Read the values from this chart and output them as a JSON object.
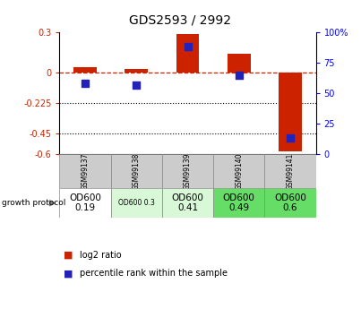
{
  "title": "GDS2593 / 2992",
  "samples": [
    "GSM99137",
    "GSM99138",
    "GSM99139",
    "GSM99140",
    "GSM99141"
  ],
  "log2_ratio": [
    0.04,
    0.03,
    0.285,
    0.14,
    -0.58
  ],
  "pct_rank_left": [
    -0.075,
    -0.09,
    0.195,
    -0.015,
    -0.48
  ],
  "ylim_left": [
    -0.6,
    0.3
  ],
  "ylim_right": [
    0,
    100
  ],
  "yticks_left": [
    0.3,
    0,
    -0.225,
    -0.45,
    -0.6
  ],
  "ytick_labels_left": [
    "0.3",
    "0",
    "-0.225",
    "-0.45",
    "-0.6"
  ],
  "yticks_right": [
    100,
    75,
    50,
    25,
    0
  ],
  "hline_dotted1": -0.225,
  "hline_dotted2": -0.45,
  "bar_color": "#cc2200",
  "dot_color": "#2222bb",
  "growth_protocol_labels": [
    "OD600\n0.19",
    "OD600 0.3",
    "OD600\n0.41",
    "OD600\n0.49",
    "OD600\n0.6"
  ],
  "growth_protocol_colors": [
    "#ffffff",
    "#d8f8d8",
    "#d8f8d8",
    "#66dd66",
    "#66dd66"
  ],
  "growth_protocol_fontsizes": [
    7.5,
    5.5,
    7.5,
    7.5,
    7.5
  ],
  "sample_cell_color": "#cccccc",
  "title_fontsize": 10,
  "background_color": "#ffffff"
}
